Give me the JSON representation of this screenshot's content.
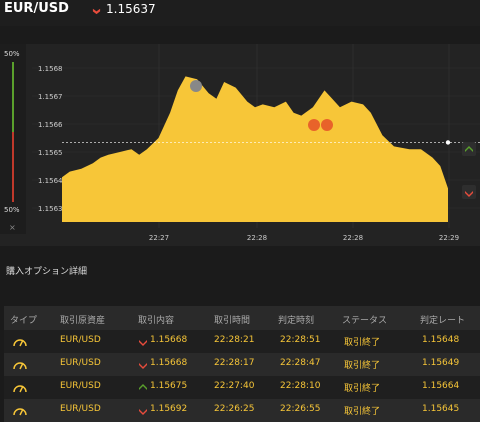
{
  "header": {
    "pair": "EUR/USD",
    "rate": "1.15637",
    "direction": "down"
  },
  "chart": {
    "y_ticks": [
      "1.1568",
      "1.1567",
      "1.1566",
      "1.1565",
      "1.1564",
      "1.1563"
    ],
    "x_ticks": [
      "22:27",
      "22:28",
      "22:28",
      "22:29"
    ],
    "top_pct": "50%",
    "bottom_pct": "50%",
    "close_label": "×",
    "fill_color": "#f7c638"
  },
  "chart_data": {
    "type": "area",
    "x": [
      0,
      0.02,
      0.05,
      0.08,
      0.1,
      0.12,
      0.15,
      0.18,
      0.2,
      0.22,
      0.25,
      0.28,
      0.3,
      0.32,
      0.35,
      0.38,
      0.4,
      0.42,
      0.45,
      0.48,
      0.5,
      0.52,
      0.55,
      0.58,
      0.6,
      0.62,
      0.65,
      0.68,
      0.7,
      0.72,
      0.75,
      0.78,
      0.8,
      0.83,
      0.86,
      0.9,
      0.93,
      0.96,
      0.98,
      1.0
    ],
    "y": [
      1.15641,
      1.15643,
      1.15644,
      1.15646,
      1.15648,
      1.15649,
      1.1565,
      1.15651,
      1.15649,
      1.15651,
      1.15655,
      1.15664,
      1.15672,
      1.15677,
      1.15676,
      1.15671,
      1.15669,
      1.15675,
      1.15673,
      1.15668,
      1.15666,
      1.15667,
      1.15666,
      1.15668,
      1.15664,
      1.15663,
      1.15666,
      1.15672,
      1.15669,
      1.15666,
      1.15668,
      1.15667,
      1.15664,
      1.15656,
      1.15652,
      1.15651,
      1.15651,
      1.15648,
      1.15645,
      1.15637
    ],
    "ylim": [
      1.15625,
      1.15685
    ],
    "markers": [
      {
        "kind": "grey",
        "y": 1.15681
      },
      {
        "kind": "orange",
        "y": 1.15663
      },
      {
        "kind": "orange",
        "y": 1.15663
      }
    ]
  },
  "section": {
    "title": "購入オプション詳細"
  },
  "table": {
    "headers": [
      "タイプ",
      "取引原資産",
      "取引内容",
      "取引時間",
      "判定時刻",
      "ステータス",
      "判定レート"
    ],
    "rows": [
      {
        "asset": "EUR/USD",
        "dir": "down",
        "entry": "1.15668",
        "time": "22:28:21",
        "judge": "22:28:51",
        "status": "取引終了",
        "rate": "1.15648"
      },
      {
        "asset": "EUR/USD",
        "dir": "down",
        "entry": "1.15668",
        "time": "22:28:17",
        "judge": "22:28:47",
        "status": "取引終了",
        "rate": "1.15649"
      },
      {
        "asset": "EUR/USD",
        "dir": "up",
        "entry": "1.15675",
        "time": "22:27:40",
        "judge": "22:28:10",
        "status": "取引終了",
        "rate": "1.15664"
      },
      {
        "asset": "EUR/USD",
        "dir": "down",
        "entry": "1.15692",
        "time": "22:26:25",
        "judge": "22:26:55",
        "status": "取引終了",
        "rate": "1.15645"
      }
    ]
  }
}
